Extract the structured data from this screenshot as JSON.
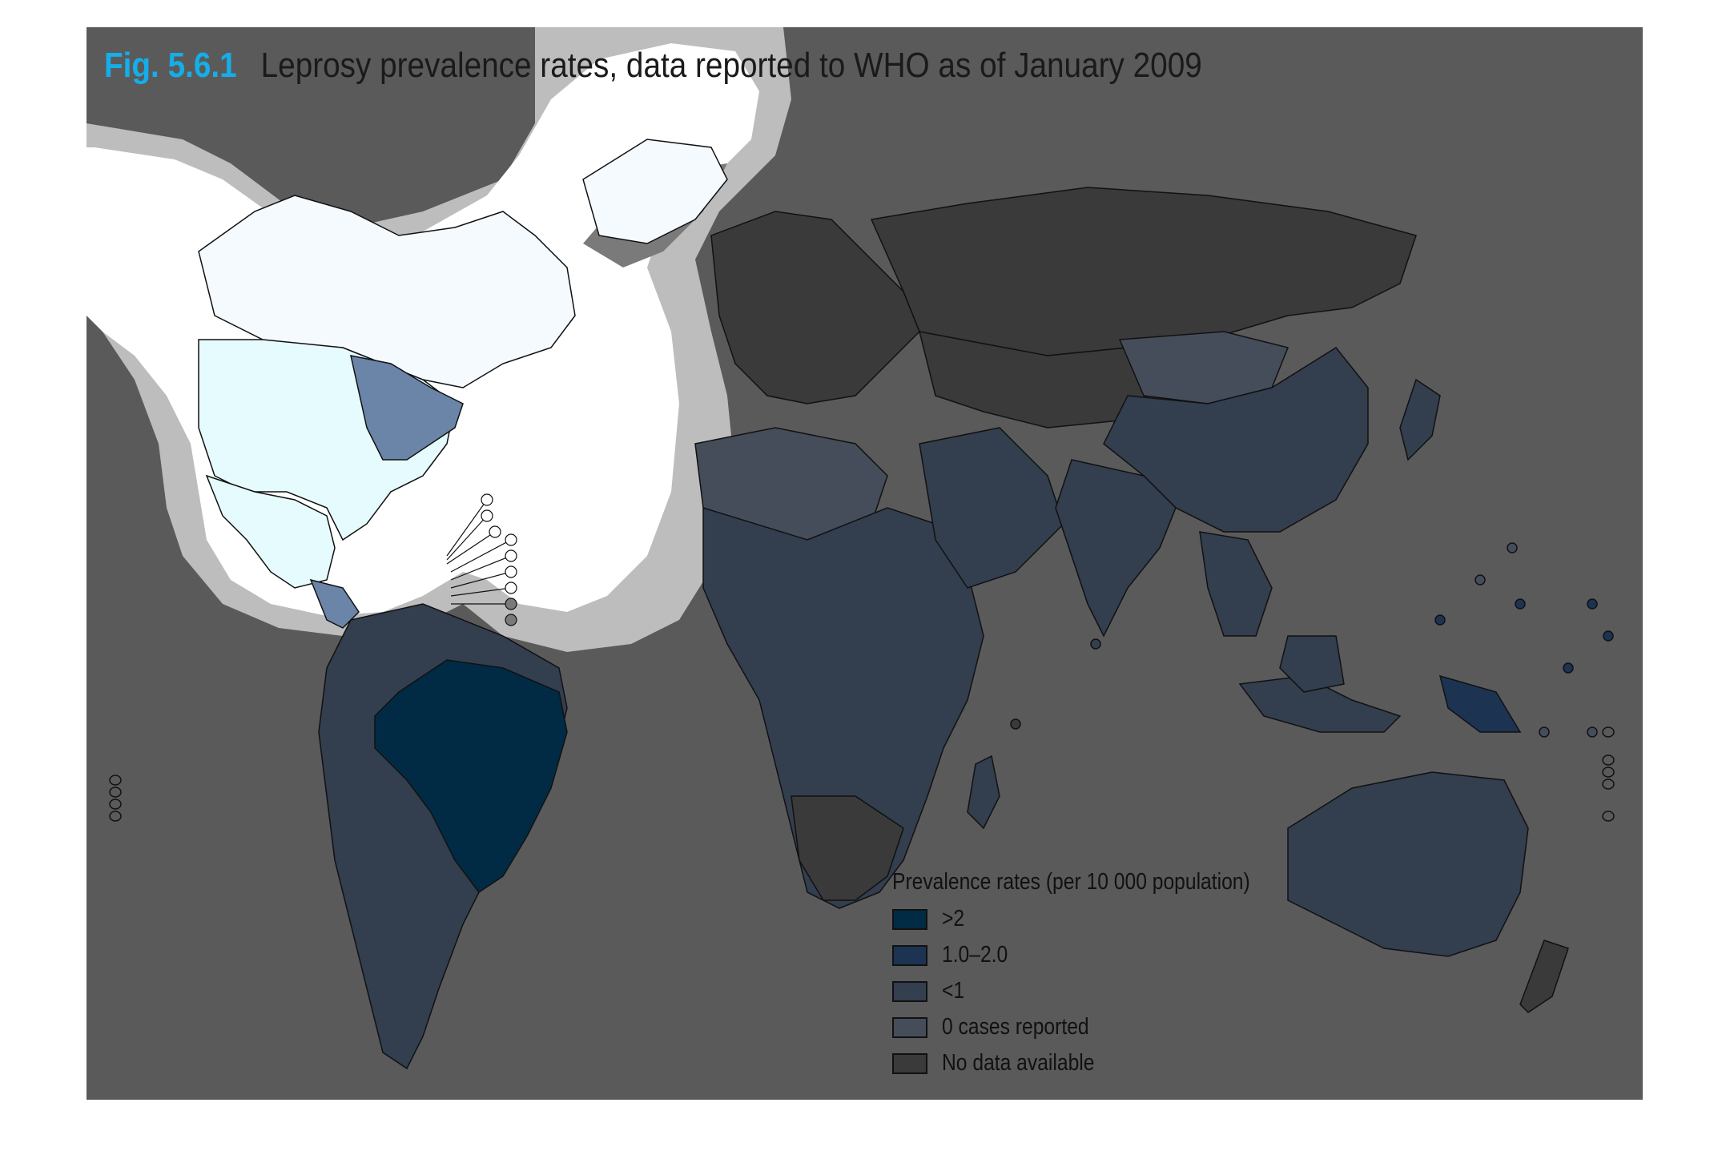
{
  "figure": {
    "number": "Fig. 5.6.1",
    "caption": "Leprosy prevalence rates, data reported to WHO as of January 2009"
  },
  "legend": {
    "title": "Prevalence rates (per 10 000 population)",
    "items": [
      {
        "label": ">2",
        "color": "#012b45"
      },
      {
        "label": "1.0–2.0",
        "color": "#1c3352"
      },
      {
        "label": "<1",
        "color": "#333e4e"
      },
      {
        "label": "0 cases reported",
        "color": "#464d5a"
      },
      {
        "label": "No data available",
        "color": "#3a3a3a"
      }
    ]
  },
  "colors": {
    "background": "#5a5a5a",
    "ocean_panel": "#5a5a5a",
    "highlight_white": "#ffffff",
    "highlight_band": "#bdbdbd",
    "north_america_fill": "#e6fbfd",
    "country_border": "#111111"
  },
  "region_categories": {
    "Brazil": ">2",
    "South America (other)": "<1",
    "India": "1.0–2.0",
    "China": "<1",
    "Mongolia": "0 cases reported",
    "Africa (most)": "<1",
    "Russia": "No data available",
    "Europe": "No data available",
    "Australia": "<1",
    "Papua New Guinea": "1.0–2.0",
    "Indonesia": "<1",
    "Mexico": "<1",
    "Algeria": "0 cases reported",
    "South Africa": "No data available"
  }
}
